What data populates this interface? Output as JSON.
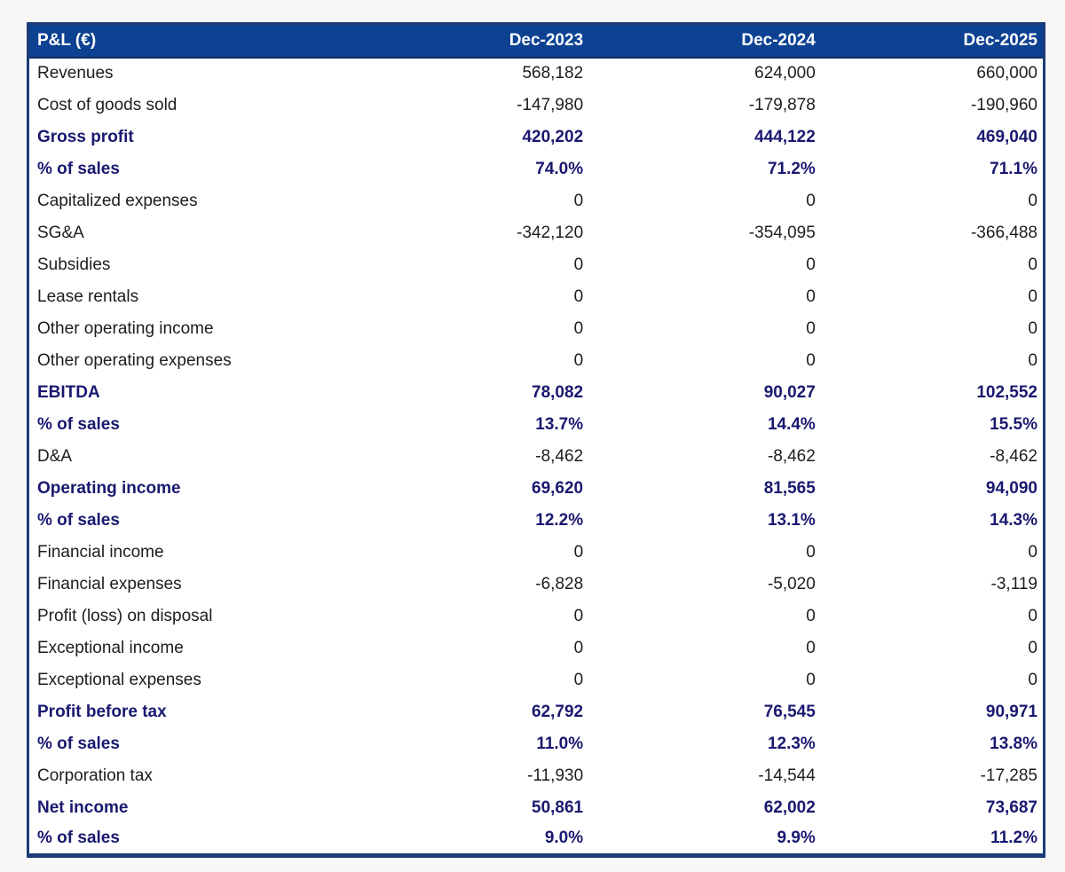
{
  "chart_data": {
    "type": "table",
    "title": "P&L (€)",
    "columns": [
      "Dec-2023",
      "Dec-2024",
      "Dec-2025"
    ],
    "rows": [
      {
        "label": "Revenues",
        "values": [
          "568,182",
          "624,000",
          "660,000"
        ],
        "bold": false
      },
      {
        "label": "Cost of goods sold",
        "values": [
          "-147,980",
          "-179,878",
          "-190,960"
        ],
        "bold": false
      },
      {
        "label": "Gross profit",
        "values": [
          "420,202",
          "444,122",
          "469,040"
        ],
        "bold": true
      },
      {
        "label": "% of sales",
        "values": [
          "74.0%",
          "71.2%",
          "71.1%"
        ],
        "bold": true
      },
      {
        "label": "Capitalized expenses",
        "values": [
          "0",
          "0",
          "0"
        ],
        "bold": false
      },
      {
        "label": "SG&A",
        "values": [
          "-342,120",
          "-354,095",
          "-366,488"
        ],
        "bold": false
      },
      {
        "label": "Subsidies",
        "values": [
          "0",
          "0",
          "0"
        ],
        "bold": false
      },
      {
        "label": "Lease rentals",
        "values": [
          "0",
          "0",
          "0"
        ],
        "bold": false
      },
      {
        "label": "Other operating income",
        "values": [
          "0",
          "0",
          "0"
        ],
        "bold": false
      },
      {
        "label": "Other operating expenses",
        "values": [
          "0",
          "0",
          "0"
        ],
        "bold": false
      },
      {
        "label": "EBITDA",
        "values": [
          "78,082",
          "90,027",
          "102,552"
        ],
        "bold": true
      },
      {
        "label": "% of sales",
        "values": [
          "13.7%",
          "14.4%",
          "15.5%"
        ],
        "bold": true
      },
      {
        "label": "D&A",
        "values": [
          "-8,462",
          "-8,462",
          "-8,462"
        ],
        "bold": false
      },
      {
        "label": "Operating income",
        "values": [
          "69,620",
          "81,565",
          "94,090"
        ],
        "bold": true
      },
      {
        "label": "% of sales",
        "values": [
          "12.2%",
          "13.1%",
          "14.3%"
        ],
        "bold": true
      },
      {
        "label": "Financial income",
        "values": [
          "0",
          "0",
          "0"
        ],
        "bold": false
      },
      {
        "label": "Financial expenses",
        "values": [
          "-6,828",
          "-5,020",
          "-3,119"
        ],
        "bold": false
      },
      {
        "label": "Profit (loss) on disposal",
        "values": [
          "0",
          "0",
          "0"
        ],
        "bold": false
      },
      {
        "label": "Exceptional income",
        "values": [
          "0",
          "0",
          "0"
        ],
        "bold": false
      },
      {
        "label": "Exceptional expenses",
        "values": [
          "0",
          "0",
          "0"
        ],
        "bold": false
      },
      {
        "label": "Profit before tax",
        "values": [
          "62,792",
          "76,545",
          "90,971"
        ],
        "bold": true
      },
      {
        "label": "% of sales",
        "values": [
          "11.0%",
          "12.3%",
          "13.8%"
        ],
        "bold": true
      },
      {
        "label": "Corporation tax",
        "values": [
          "-11,930",
          "-14,544",
          "-17,285"
        ],
        "bold": false
      },
      {
        "label": "Net income",
        "values": [
          "50,861",
          "62,002",
          "73,687"
        ],
        "bold": true
      },
      {
        "label": "% of sales",
        "values": [
          "9.0%",
          "9.9%",
          "11.2%"
        ],
        "bold": true
      }
    ],
    "layout": {
      "legend": "none",
      "grid": "off",
      "value_alignment": "right"
    }
  },
  "colors": {
    "header_bg": "#0d4192",
    "header_text": "#ffffff",
    "bold_row_text": "#191970",
    "regular_row_text": "#1d1d1d",
    "table_border": "#1c3a78",
    "body_bg": "#ffffff",
    "page_bg": "#f7f7f7"
  }
}
